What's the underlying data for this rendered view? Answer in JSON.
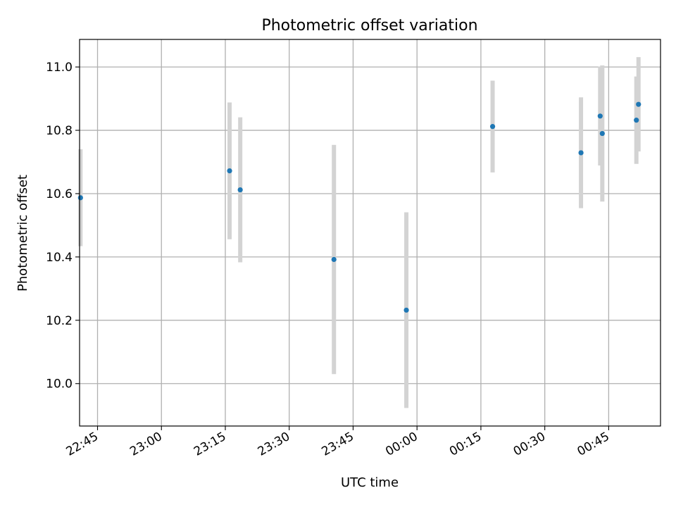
{
  "chart_data": {
    "type": "scatter",
    "title": "Photometric offset variation",
    "xlabel": "UTC time",
    "ylabel": "Photometric offset",
    "xlim": [
      "22:40:47",
      "00:57:10"
    ],
    "ylim": [
      9.866,
      11.087
    ],
    "grid": true,
    "x_ticks": [
      "22:45",
      "23:00",
      "23:15",
      "23:30",
      "23:45",
      "00:00",
      "00:15",
      "00:30",
      "00:45"
    ],
    "y_ticks": [
      "10.0",
      "10.2",
      "10.4",
      "10.6",
      "10.8",
      "11.0"
    ],
    "series": [
      {
        "points": [
          {
            "x": "22:41:00",
            "y": 10.587,
            "err": 0.153
          },
          {
            "x": "23:16:00",
            "y": 10.672,
            "err": 0.216
          },
          {
            "x": "23:18:30",
            "y": 10.612,
            "err": 0.229
          },
          {
            "x": "23:40:30",
            "y": 10.392,
            "err": 0.362
          },
          {
            "x": "23:57:30",
            "y": 10.232,
            "err": 0.309
          },
          {
            "x": "00:17:45",
            "y": 10.812,
            "err": 0.145
          },
          {
            "x": "00:38:30",
            "y": 10.729,
            "err": 0.175
          },
          {
            "x": "00:43:00",
            "y": 10.845,
            "err": 0.156
          },
          {
            "x": "00:43:30",
            "y": 10.79,
            "err": 0.215
          },
          {
            "x": "00:51:30",
            "y": 10.832,
            "err": 0.138
          },
          {
            "x": "00:52:00",
            "y": 10.882,
            "err": 0.149
          }
        ]
      }
    ],
    "colors": {
      "marker": "#1f77b4",
      "errorbar": "#d3d3d3",
      "grid": "#b0b0b0"
    }
  }
}
